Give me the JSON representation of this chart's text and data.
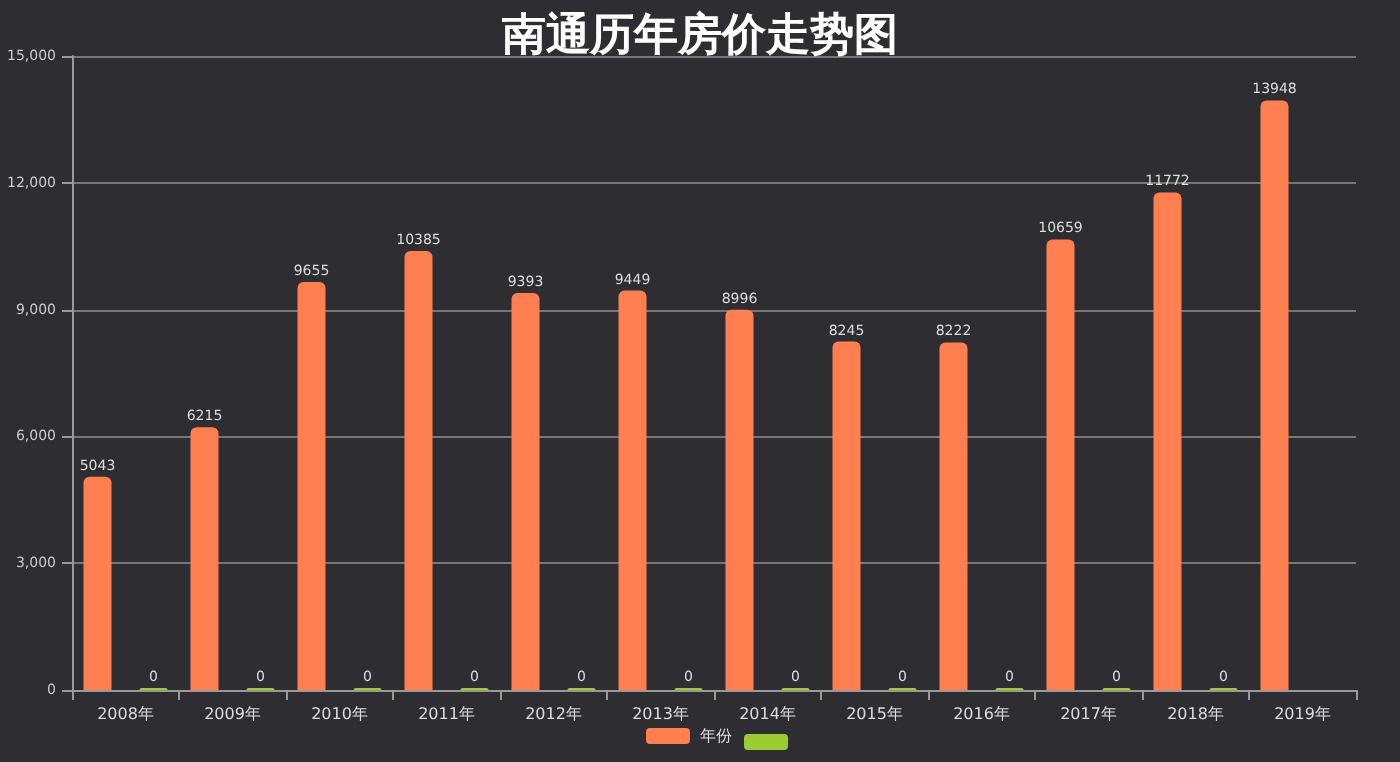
{
  "chart_data": {
    "type": "bar",
    "title": "南通历年房价走势图",
    "categories": [
      "2008年",
      "2009年",
      "2010年",
      "2011年",
      "2012年",
      "2013年",
      "2014年",
      "2015年",
      "2016年",
      "2017年",
      "2018年",
      "2019年"
    ],
    "series": [
      {
        "name": "年份",
        "color": "#ff7f50",
        "values": [
          5043,
          6215,
          9655,
          10385,
          9393,
          9449,
          8996,
          8245,
          8222,
          10659,
          11772,
          13948
        ]
      },
      {
        "color": "#9acd32",
        "values": [
          0,
          0,
          0,
          0,
          0,
          0,
          0,
          0,
          0,
          0,
          0,
          null
        ]
      }
    ],
    "ylim": [
      0,
      15000
    ],
    "yticks": [
      0,
      {
        "value": 3000,
        "label": "3,000"
      },
      {
        "value": 6000,
        "label": "6,000"
      },
      {
        "value": 9000,
        "label": "9,000"
      },
      {
        "value": 12000,
        "label": "12,000"
      },
      {
        "value": 15000,
        "label": "15,000"
      }
    ],
    "grid": "y",
    "data_labels": true,
    "legend": "bottom"
  }
}
